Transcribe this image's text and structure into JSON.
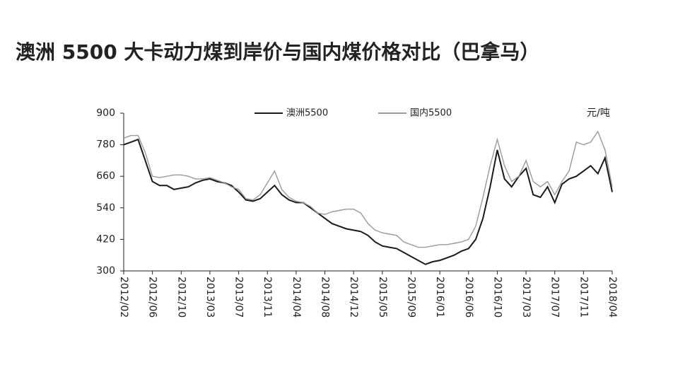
{
  "chart_data": {
    "type": "line",
    "title": "澳洲 5500 大卡动力煤到岸价与国内煤价格对比（巴拿马）",
    "y_unit": "元/吨",
    "categories": [
      "2012/02",
      null,
      null,
      null,
      "2012/06",
      null,
      null,
      null,
      "2012/10",
      null,
      null,
      null,
      "2013/03",
      null,
      null,
      null,
      "2013/07",
      null,
      null,
      null,
      "2013/11",
      null,
      null,
      null,
      "2014/04",
      null,
      null,
      null,
      "2014/08",
      null,
      null,
      null,
      "2014/12",
      null,
      null,
      null,
      "2015/05",
      null,
      null,
      null,
      "2015/09",
      null,
      null,
      null,
      "2016/01",
      null,
      null,
      null,
      "2016/06",
      null,
      null,
      null,
      "2016/10",
      null,
      null,
      null,
      "2017/03",
      null,
      null,
      null,
      "2017/07",
      null,
      null,
      null,
      "2017/11",
      null,
      null,
      null,
      "2018/04"
    ],
    "series": [
      {
        "name": "澳洲5500",
        "color": "#1a1a1a",
        "values": [
          780,
          790,
          800,
          720,
          640,
          625,
          625,
          610,
          615,
          620,
          635,
          645,
          650,
          640,
          635,
          625,
          600,
          570,
          565,
          575,
          600,
          625,
          590,
          570,
          560,
          560,
          540,
          520,
          500,
          480,
          470,
          460,
          455,
          450,
          435,
          410,
          395,
          390,
          385,
          370,
          355,
          340,
          325,
          335,
          340,
          350,
          360,
          375,
          385,
          420,
          500,
          620,
          760,
          650,
          620,
          660,
          690,
          590,
          580,
          620,
          560,
          630,
          650,
          660,
          680,
          700,
          670,
          730,
          600
        ]
      },
      {
        "name": "国内5500",
        "color": "#9a9a9a",
        "values": [
          805,
          815,
          815,
          750,
          660,
          655,
          660,
          665,
          665,
          660,
          650,
          650,
          655,
          645,
          635,
          620,
          610,
          575,
          570,
          590,
          635,
          680,
          610,
          580,
          565,
          560,
          545,
          520,
          515,
          525,
          530,
          535,
          535,
          520,
          480,
          455,
          445,
          440,
          435,
          410,
          400,
          390,
          390,
          395,
          400,
          400,
          405,
          410,
          420,
          470,
          580,
          700,
          800,
          700,
          640,
          660,
          720,
          640,
          620,
          640,
          590,
          640,
          680,
          790,
          780,
          790,
          830,
          760,
          620
        ]
      }
    ],
    "ylim": [
      300,
      900
    ],
    "yticks": [
      300,
      420,
      540,
      660,
      780,
      900
    ],
    "grid": false,
    "legend": "top"
  }
}
